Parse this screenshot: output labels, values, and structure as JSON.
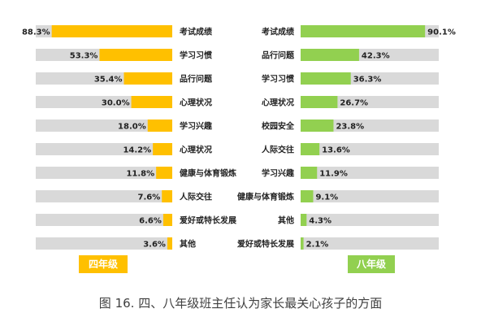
{
  "chart_data": [
    {
      "type": "bar",
      "orientation": "horizontal",
      "direction": "right-to-left",
      "title": "四年级",
      "categories": [
        "考试成绩",
        "学习习惯",
        "品行问题",
        "心理状况",
        "学习兴趣",
        "心理状况",
        "健康与体育锻炼",
        "人际交往",
        "爱好或特长发展",
        "其他"
      ],
      "values": [
        88.3,
        53.3,
        35.4,
        30.0,
        18.0,
        14.2,
        11.8,
        7.6,
        6.6,
        3.6
      ],
      "value_labels": [
        "88.3%",
        "53.3%",
        "35.4%",
        "30.0%",
        "18.0%",
        "14.2%",
        "11.8%",
        "7.6%",
        "6.6%",
        "3.6%"
      ],
      "xlim": [
        0,
        100
      ],
      "color": "#ffc000",
      "track_color": "#d9d9d9"
    },
    {
      "type": "bar",
      "orientation": "horizontal",
      "direction": "left-to-right",
      "title": "八年级",
      "categories": [
        "考试成绩",
        "品行问题",
        "学习习惯",
        "心理状况",
        "校园安全",
        "人际交往",
        "学习兴趣",
        "健康与体育锻炼",
        "其他",
        "爱好或特长发展"
      ],
      "values": [
        90.1,
        42.3,
        36.3,
        26.7,
        23.8,
        13.6,
        11.9,
        9.1,
        4.3,
        2.1
      ],
      "value_labels": [
        "90.1%",
        "42.3%",
        "36.3%",
        "26.7%",
        "23.8%",
        "13.6%",
        "11.9%",
        "9.1%",
        "4.3%",
        "2.1%"
      ],
      "xlim": [
        0,
        100
      ],
      "color": "#92d050",
      "track_color": "#d9d9d9"
    }
  ],
  "caption": "图 16.  四、八年级班主任认为家长最关心孩子的方面"
}
